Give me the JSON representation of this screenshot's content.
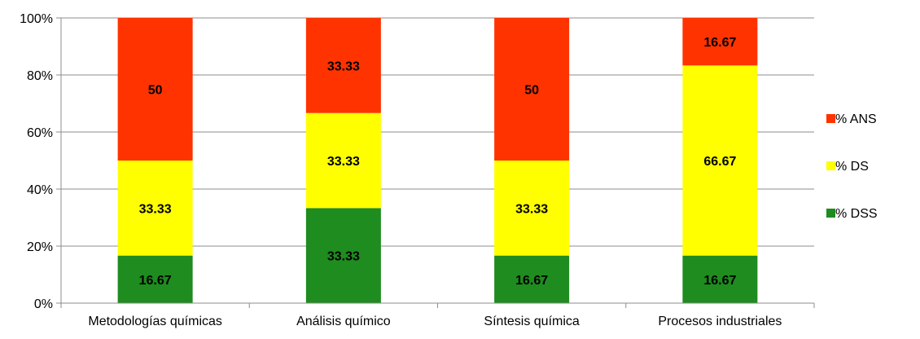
{
  "chart_data": {
    "type": "bar",
    "stacked": true,
    "percent": true,
    "title": "",
    "xlabel": "",
    "ylabel": "",
    "ylim": [
      0,
      100
    ],
    "yticks": [
      "0%",
      "20%",
      "40%",
      "60%",
      "80%",
      "100%"
    ],
    "grid": true,
    "legend_position": "right",
    "categories": [
      "Metodologías químicas",
      "Análisis químico",
      "Síntesis química",
      "Procesos industriales"
    ],
    "series": [
      {
        "name": "% DSS",
        "color": "#1e8c1e",
        "values": [
          16.67,
          33.33,
          16.67,
          16.67
        ]
      },
      {
        "name": "% DS",
        "color": "#ffff00",
        "values": [
          33.33,
          33.33,
          33.33,
          66.67
        ]
      },
      {
        "name": "% ANS",
        "color": "#ff3300",
        "values": [
          50,
          33.33,
          50,
          16.67
        ]
      }
    ],
    "legend_order": [
      "% ANS",
      "% DS",
      "% DSS"
    ],
    "data_labels": [
      [
        "16.67",
        "33.33",
        "16.67",
        "16.67"
      ],
      [
        "33.33",
        "33.33",
        "33.33",
        "66.67"
      ],
      [
        "50",
        "33.33",
        "50",
        "16.67"
      ]
    ]
  }
}
